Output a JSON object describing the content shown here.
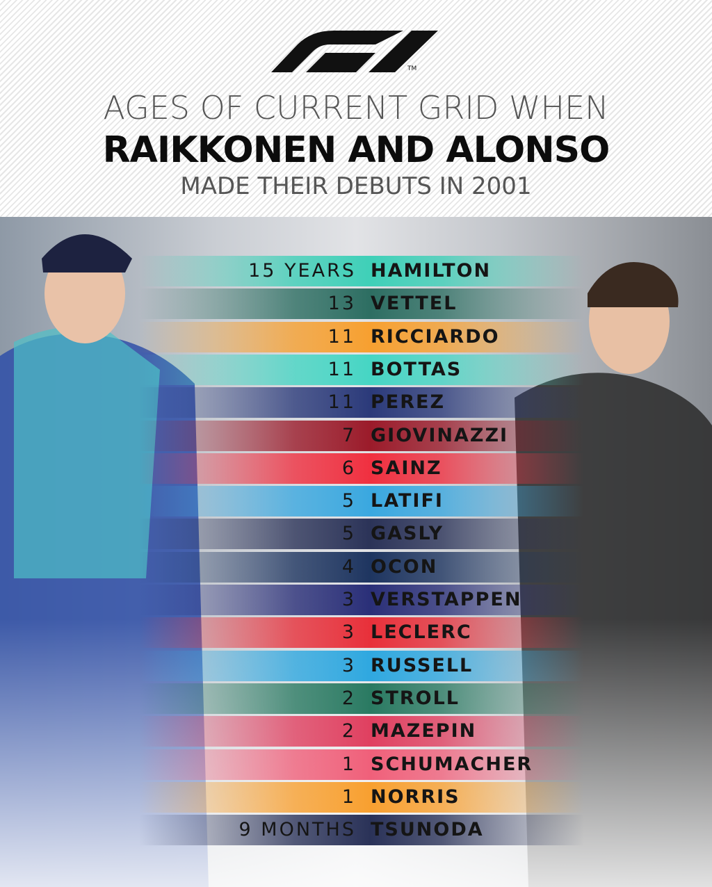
{
  "header": {
    "tm": "TM",
    "line1": "AGES OF CURRENT GRID WHEN",
    "line2": "RAIKKONEN AND ALONSO",
    "line3": "MADE THEIR DEBUTS IN 2001"
  },
  "rows": [
    {
      "age": "15 YEARS",
      "driver": "HAMILTON",
      "color": "#3fd0b8"
    },
    {
      "age": "13",
      "driver": "VETTEL",
      "color": "#2d6e62"
    },
    {
      "age": "11",
      "driver": "RICCIARDO",
      "color": "#f7a030"
    },
    {
      "age": "11",
      "driver": "BOTTAS",
      "color": "#46d6c4"
    },
    {
      "age": "11",
      "driver": "PEREZ",
      "color": "#2b3a7a"
    },
    {
      "age": "7",
      "driver": "GIOVINAZZI",
      "color": "#9b1b2a"
    },
    {
      "age": "6",
      "driver": "SAINZ",
      "color": "#f03040"
    },
    {
      "age": "5",
      "driver": "LATIFI",
      "color": "#3aa8e0"
    },
    {
      "age": "5",
      "driver": "GASLY",
      "color": "#2b3358"
    },
    {
      "age": "4",
      "driver": "OCON",
      "color": "#1e3560"
    },
    {
      "age": "3",
      "driver": "VERSTAPPEN",
      "color": "#2a2f78"
    },
    {
      "age": "3",
      "driver": "LECLERC",
      "color": "#e8303a"
    },
    {
      "age": "3",
      "driver": "RUSSELL",
      "color": "#2fa8e0"
    },
    {
      "age": "2",
      "driver": "STROLL",
      "color": "#2a7a62"
    },
    {
      "age": "2",
      "driver": "MAZEPIN",
      "color": "#e04060"
    },
    {
      "age": "1",
      "driver": "SCHUMACHER",
      "color": "#f0607a"
    },
    {
      "age": "1",
      "driver": "NORRIS",
      "color": "#f8a030"
    },
    {
      "age": "9 MONTHS",
      "driver": "TSUNODA",
      "color": "#2a3258"
    }
  ]
}
